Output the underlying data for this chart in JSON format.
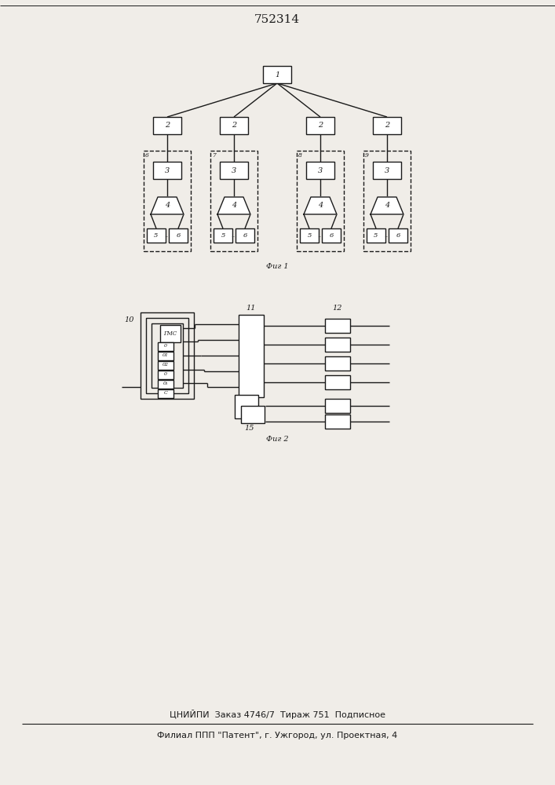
{
  "title": "752314",
  "fig1_caption": "Фиг 1",
  "fig2_caption": "Фиг 2",
  "footer_line1": "ЦНИЙПИ  Заказ 4746/7  Тираж 751  Подписное",
  "footer_line2": "Филиал ППП \"Патент\", г. Ужгород, ул. Проектная, 4",
  "bg_color": "#f0ede8",
  "line_color": "#1a1a1a",
  "box_color": "#1a1a1a"
}
